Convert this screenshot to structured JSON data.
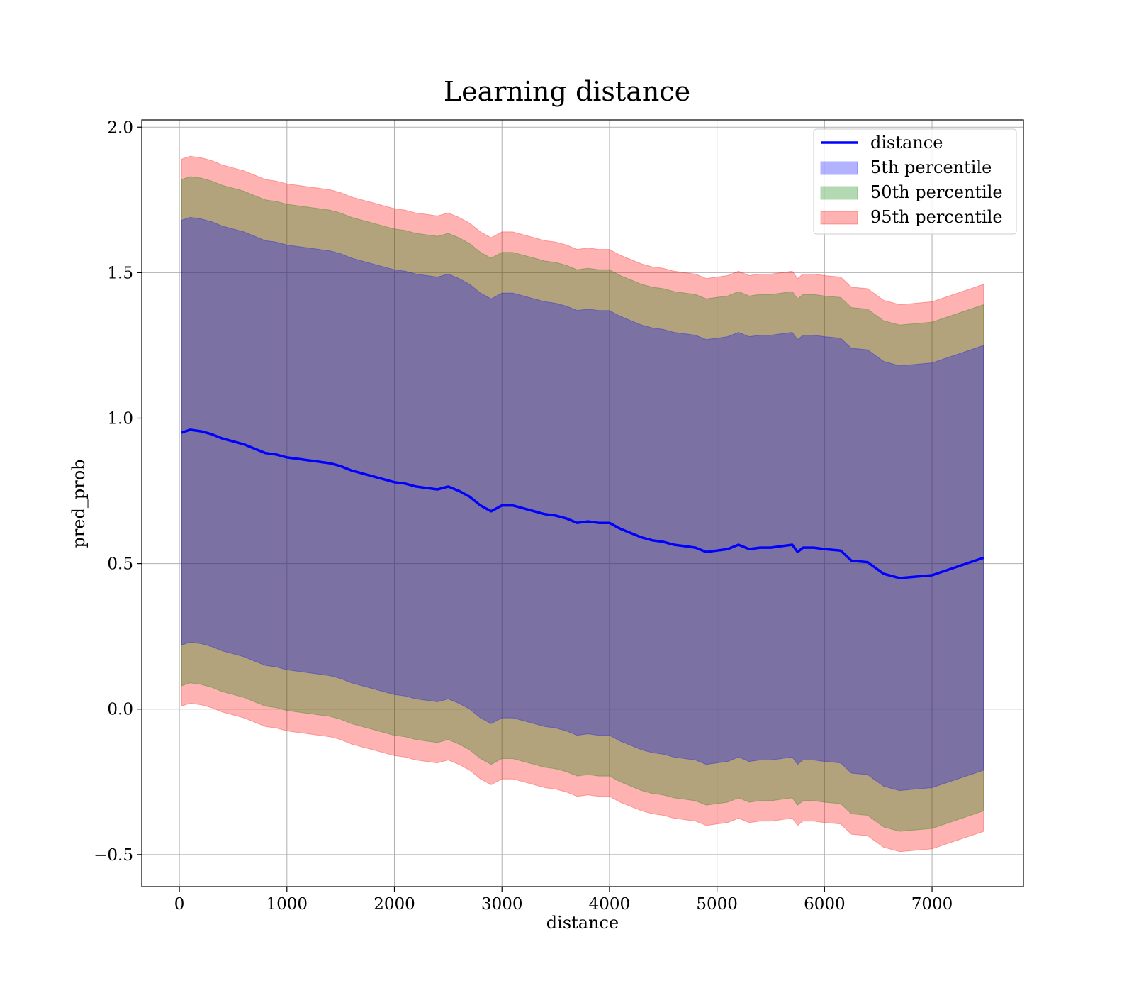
{
  "chart_data": {
    "type": "line",
    "title": "Learning distance",
    "xlabel": "distance",
    "ylabel": "pred_prob",
    "xlim": [
      -350,
      7850
    ],
    "ylim": [
      -0.61,
      2.025
    ],
    "xticks": [
      0,
      1000,
      2000,
      3000,
      4000,
      5000,
      6000,
      7000
    ],
    "yticks": [
      -0.5,
      0.0,
      0.5,
      1.0,
      1.5,
      2.0
    ],
    "xtick_labels": [
      "0",
      "1000",
      "2000",
      "3000",
      "4000",
      "5000",
      "6000",
      "7000"
    ],
    "ytick_labels": [
      "−0.5",
      "0.0",
      "0.5",
      "1.0",
      "1.5",
      "2.0"
    ],
    "grid": true,
    "legend_position": "top-right",
    "x": [
      20,
      100,
      200,
      300,
      400,
      500,
      600,
      700,
      800,
      900,
      1000,
      1100,
      1200,
      1300,
      1400,
      1500,
      1600,
      1700,
      1800,
      1900,
      2000,
      2100,
      2200,
      2300,
      2400,
      2500,
      2600,
      2700,
      2800,
      2900,
      3000,
      3100,
      3200,
      3300,
      3400,
      3500,
      3600,
      3700,
      3800,
      3900,
      4000,
      4100,
      4200,
      4300,
      4400,
      4500,
      4600,
      4700,
      4800,
      4900,
      5000,
      5100,
      5200,
      5300,
      5400,
      5500,
      5600,
      5700,
      5750,
      5800,
      5900,
      6000,
      6150,
      6250,
      6400,
      6550,
      6700,
      7000,
      7480
    ],
    "series": [
      {
        "name": "distance",
        "kind": "line",
        "color": "#0000ff",
        "values": [
          0.95,
          0.96,
          0.955,
          0.945,
          0.93,
          0.92,
          0.91,
          0.895,
          0.88,
          0.875,
          0.865,
          0.86,
          0.855,
          0.85,
          0.845,
          0.835,
          0.82,
          0.81,
          0.8,
          0.79,
          0.78,
          0.775,
          0.765,
          0.76,
          0.755,
          0.765,
          0.75,
          0.73,
          0.7,
          0.68,
          0.7,
          0.7,
          0.69,
          0.68,
          0.67,
          0.665,
          0.655,
          0.64,
          0.645,
          0.64,
          0.64,
          0.62,
          0.605,
          0.59,
          0.58,
          0.575,
          0.565,
          0.56,
          0.555,
          0.54,
          0.545,
          0.55,
          0.565,
          0.55,
          0.555,
          0.555,
          0.56,
          0.565,
          0.54,
          0.555,
          0.555,
          0.55,
          0.545,
          0.51,
          0.505,
          0.465,
          0.45,
          0.46,
          0.52
        ]
      },
      {
        "name": "5th percentile",
        "kind": "band",
        "color": "#0000ff",
        "upper": [
          1.68,
          1.69,
          1.685,
          1.675,
          1.66,
          1.65,
          1.64,
          1.625,
          1.61,
          1.605,
          1.595,
          1.59,
          1.585,
          1.58,
          1.575,
          1.565,
          1.55,
          1.54,
          1.53,
          1.52,
          1.51,
          1.505,
          1.495,
          1.49,
          1.485,
          1.495,
          1.48,
          1.46,
          1.43,
          1.41,
          1.43,
          1.43,
          1.42,
          1.41,
          1.4,
          1.395,
          1.385,
          1.37,
          1.375,
          1.37,
          1.37,
          1.35,
          1.335,
          1.32,
          1.31,
          1.305,
          1.295,
          1.29,
          1.285,
          1.27,
          1.275,
          1.28,
          1.295,
          1.28,
          1.285,
          1.285,
          1.29,
          1.295,
          1.27,
          1.285,
          1.285,
          1.28,
          1.275,
          1.24,
          1.235,
          1.195,
          1.18,
          1.19,
          1.25
        ],
        "lower": [
          0.22,
          0.23,
          0.225,
          0.215,
          0.2,
          0.19,
          0.18,
          0.165,
          0.15,
          0.145,
          0.135,
          0.13,
          0.125,
          0.12,
          0.115,
          0.105,
          0.09,
          0.08,
          0.07,
          0.06,
          0.05,
          0.045,
          0.035,
          0.03,
          0.025,
          0.035,
          0.02,
          0.0,
          -0.03,
          -0.05,
          -0.03,
          -0.03,
          -0.04,
          -0.05,
          -0.06,
          -0.065,
          -0.075,
          -0.09,
          -0.085,
          -0.09,
          -0.09,
          -0.11,
          -0.125,
          -0.14,
          -0.15,
          -0.155,
          -0.165,
          -0.17,
          -0.175,
          -0.19,
          -0.185,
          -0.18,
          -0.165,
          -0.18,
          -0.175,
          -0.175,
          -0.17,
          -0.165,
          -0.19,
          -0.175,
          -0.175,
          -0.18,
          -0.185,
          -0.22,
          -0.225,
          -0.265,
          -0.28,
          -0.27,
          -0.21
        ]
      },
      {
        "name": "50th percentile",
        "kind": "band",
        "color": "#008000",
        "upper": [
          1.82,
          1.83,
          1.825,
          1.815,
          1.8,
          1.79,
          1.78,
          1.765,
          1.75,
          1.745,
          1.735,
          1.73,
          1.725,
          1.72,
          1.715,
          1.705,
          1.69,
          1.68,
          1.67,
          1.66,
          1.65,
          1.645,
          1.635,
          1.63,
          1.625,
          1.635,
          1.62,
          1.6,
          1.57,
          1.55,
          1.57,
          1.57,
          1.56,
          1.55,
          1.54,
          1.535,
          1.525,
          1.51,
          1.515,
          1.51,
          1.51,
          1.49,
          1.475,
          1.46,
          1.45,
          1.445,
          1.435,
          1.43,
          1.425,
          1.41,
          1.415,
          1.42,
          1.435,
          1.42,
          1.425,
          1.425,
          1.43,
          1.435,
          1.41,
          1.425,
          1.425,
          1.42,
          1.415,
          1.38,
          1.375,
          1.335,
          1.32,
          1.33,
          1.39
        ],
        "lower": [
          0.08,
          0.09,
          0.085,
          0.075,
          0.06,
          0.05,
          0.04,
          0.025,
          0.01,
          0.005,
          -0.005,
          -0.01,
          -0.015,
          -0.02,
          -0.025,
          -0.035,
          -0.05,
          -0.06,
          -0.07,
          -0.08,
          -0.09,
          -0.095,
          -0.105,
          -0.11,
          -0.115,
          -0.105,
          -0.12,
          -0.14,
          -0.17,
          -0.19,
          -0.17,
          -0.17,
          -0.18,
          -0.19,
          -0.2,
          -0.205,
          -0.215,
          -0.23,
          -0.225,
          -0.23,
          -0.23,
          -0.25,
          -0.265,
          -0.28,
          -0.29,
          -0.295,
          -0.305,
          -0.31,
          -0.315,
          -0.33,
          -0.325,
          -0.32,
          -0.305,
          -0.32,
          -0.315,
          -0.315,
          -0.31,
          -0.305,
          -0.33,
          -0.315,
          -0.315,
          -0.32,
          -0.325,
          -0.36,
          -0.365,
          -0.405,
          -0.42,
          -0.41,
          -0.35
        ]
      },
      {
        "name": "95th percentile",
        "kind": "band",
        "color": "#ff0000",
        "upper": [
          1.89,
          1.9,
          1.895,
          1.885,
          1.87,
          1.86,
          1.85,
          1.835,
          1.82,
          1.815,
          1.805,
          1.8,
          1.795,
          1.79,
          1.785,
          1.775,
          1.76,
          1.75,
          1.74,
          1.73,
          1.72,
          1.715,
          1.705,
          1.7,
          1.695,
          1.705,
          1.69,
          1.67,
          1.64,
          1.62,
          1.64,
          1.64,
          1.63,
          1.62,
          1.61,
          1.605,
          1.595,
          1.58,
          1.585,
          1.58,
          1.58,
          1.56,
          1.545,
          1.53,
          1.52,
          1.515,
          1.505,
          1.5,
          1.495,
          1.48,
          1.485,
          1.49,
          1.505,
          1.49,
          1.495,
          1.495,
          1.5,
          1.505,
          1.48,
          1.495,
          1.495,
          1.49,
          1.485,
          1.45,
          1.445,
          1.405,
          1.39,
          1.4,
          1.46
        ],
        "lower": [
          0.01,
          0.02,
          0.015,
          0.005,
          -0.01,
          -0.02,
          -0.03,
          -0.045,
          -0.06,
          -0.065,
          -0.075,
          -0.08,
          -0.085,
          -0.09,
          -0.095,
          -0.105,
          -0.12,
          -0.13,
          -0.14,
          -0.15,
          -0.16,
          -0.165,
          -0.175,
          -0.18,
          -0.185,
          -0.175,
          -0.19,
          -0.21,
          -0.24,
          -0.26,
          -0.24,
          -0.24,
          -0.25,
          -0.26,
          -0.27,
          -0.275,
          -0.285,
          -0.3,
          -0.295,
          -0.3,
          -0.3,
          -0.32,
          -0.335,
          -0.35,
          -0.36,
          -0.365,
          -0.375,
          -0.38,
          -0.385,
          -0.4,
          -0.395,
          -0.39,
          -0.375,
          -0.39,
          -0.385,
          -0.385,
          -0.38,
          -0.375,
          -0.4,
          -0.385,
          -0.385,
          -0.39,
          -0.395,
          -0.43,
          -0.435,
          -0.475,
          -0.49,
          -0.48,
          -0.42
        ]
      }
    ]
  }
}
